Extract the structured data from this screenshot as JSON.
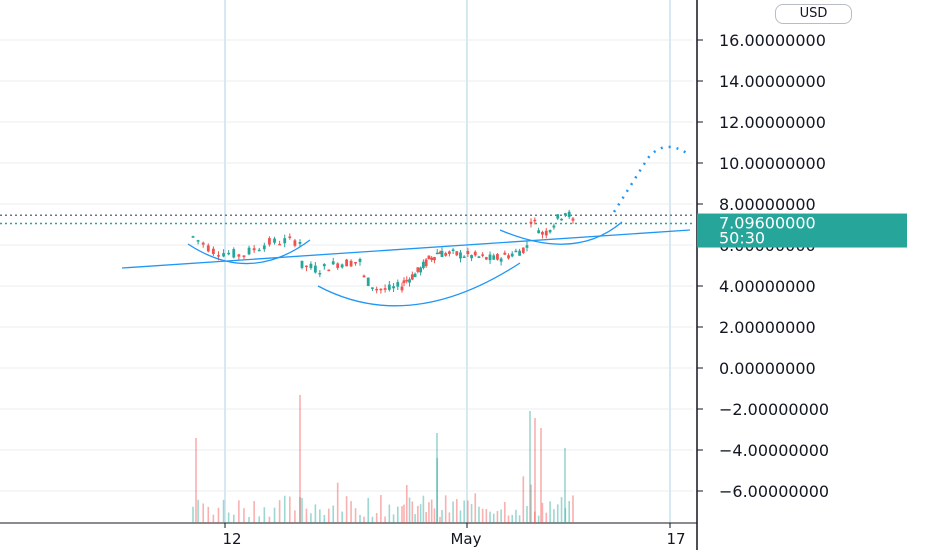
{
  "currency_button": "USD",
  "chart_data": {
    "type": "candlestick",
    "price_axis": {
      "ticks": [
        16,
        14,
        12,
        10,
        8,
        6,
        4,
        2,
        0,
        -2,
        -4,
        -6
      ],
      "tick_labels": [
        "16.00000000",
        "14.00000000",
        "12.00000000",
        "10.00000000",
        "8.00000000",
        "6.00000000",
        "4.00000000",
        "2.00000000",
        "0.00000000",
        "−2.00000000",
        "−4.00000000",
        "−6.00000000"
      ]
    },
    "time_axis": {
      "labels": [
        "12",
        "May",
        "17"
      ]
    },
    "last_price": {
      "value": 7.096,
      "label": "7.09600000",
      "countdown": "50:30",
      "color": "#26a69a"
    },
    "horizontal_levels": [
      7.5,
      7.1
    ],
    "candles": {
      "segments": [
        {
          "n": 22,
          "open": 6.2,
          "close": 6.2,
          "wave": [
            [
              0,
              6.4
            ],
            [
              0.2,
              5.7
            ],
            [
              0.45,
              5.5
            ],
            [
              0.7,
              6.1
            ],
            [
              0.85,
              6.2
            ],
            [
              1,
              6.2
            ]
          ]
        },
        {
          "n": 14,
          "open": 5.2,
          "close": 5.0,
          "wave": [
            [
              0,
              5.0
            ],
            [
              0.3,
              4.8
            ],
            [
              0.6,
              5.1
            ],
            [
              1,
              5.2
            ]
          ]
        },
        {
          "n": 10,
          "open": 4.1,
          "close": 4.0,
          "wave": [
            [
              0,
              4.4
            ],
            [
              0.3,
              3.9
            ],
            [
              0.6,
              3.8
            ],
            [
              1,
              4.0
            ]
          ]
        },
        {
          "n": 14,
          "open": 4.3,
          "close": 5.6,
          "wave": [
            [
              0,
              4.2
            ],
            [
              0.4,
              4.7
            ],
            [
              0.7,
              5.3
            ],
            [
              1,
              5.7
            ]
          ]
        },
        {
          "n": 24,
          "open": 5.6,
          "close": 5.7,
          "wave": [
            [
              0,
              5.6
            ],
            [
              0.3,
              5.5
            ],
            [
              0.6,
              5.3
            ],
            [
              0.85,
              5.6
            ],
            [
              1,
              5.9
            ]
          ]
        },
        {
          "n": 12,
          "open": 7.4,
          "close": 7.1,
          "wave": [
            [
              0,
              7.3
            ],
            [
              0.3,
              6.5
            ],
            [
              0.6,
              7.2
            ],
            [
              0.85,
              7.7
            ],
            [
              1,
              7.1
            ]
          ]
        }
      ]
    },
    "colors": {
      "up": "#26a69a",
      "down": "#ef5350",
      "trend_line": "#2196f3",
      "projection": "#2196f3",
      "grid": "#e8ecf0",
      "vertical_grid": "#d6e9f2"
    }
  }
}
